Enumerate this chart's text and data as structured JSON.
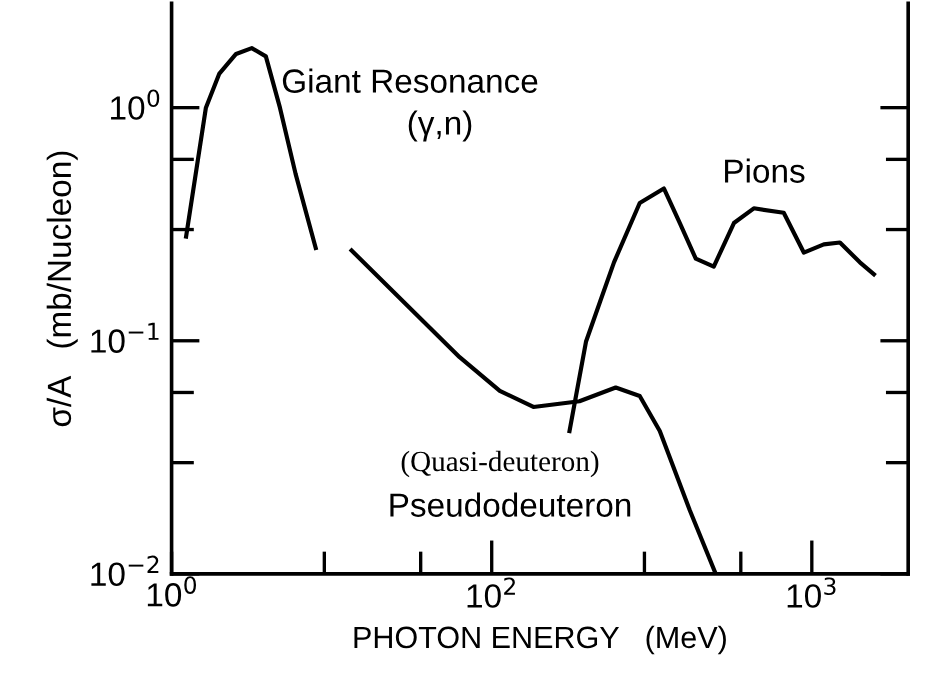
{
  "chart_data": {
    "type": "line",
    "xlabel": "PHOTON ENERGY   (MeV)",
    "ylabel": "σ/A   (mb/Nucleon)",
    "log": "xy",
    "grid": false,
    "legend": false,
    "marker": "none",
    "line_style": "solid",
    "xlim": [
      10,
      2000
    ],
    "ylim": [
      0.01,
      2.8
    ],
    "xticks": [
      {
        "value": 10,
        "label": null
      },
      {
        "value": 30,
        "label": null
      },
      {
        "value": 60,
        "label": null
      },
      {
        "value": 100,
        "label": "10$^{2}$"
      },
      {
        "value": 300,
        "label": null
      },
      {
        "value": 600,
        "label": null
      },
      {
        "value": 1000,
        "label": "10$^{3}$"
      }
    ],
    "yticks": [
      {
        "value": 0.01,
        "label": "10$^{−2}$"
      },
      {
        "value": 0.03,
        "label": null
      },
      {
        "value": 0.06,
        "label": null
      },
      {
        "value": 0.1,
        "label": "10$^{−1}$"
      },
      {
        "value": 0.3,
        "label": null
      },
      {
        "value": 0.6,
        "label": null
      },
      {
        "value": 1,
        "label": "10$^{0}$"
      }
    ],
    "series": [
      {
        "color": "#000000",
        "x": [
          11.1,
          12.8,
          14.1,
          15.9,
          17.8,
          19.7,
          21.8,
          24.4,
          28.2
        ],
        "values": [
          0.28,
          1.0,
          1.4,
          1.7,
          1.8,
          1.66,
          1.0,
          0.52,
          0.25
        ]
      },
      {
        "color": "#000000",
        "x": [
          36.5,
          79.4,
          106,
          135,
          188,
          244,
          290,
          335,
          416,
          501
        ],
        "values": [
          0.244,
          0.085,
          0.061,
          0.052,
          0.055,
          0.063,
          0.058,
          0.041,
          0.0187,
          0.01
        ]
      },
      {
        "color": "#000000",
        "x": [
          175,
          197,
          218,
          241,
          290,
          345,
          387,
          434,
          494,
          571,
          659,
          817,
          944,
          1090,
          1224,
          1413,
          1563
        ],
        "values": [
          0.041,
          0.099,
          0.147,
          0.217,
          0.39,
          0.45,
          0.32,
          0.225,
          0.208,
          0.32,
          0.37,
          0.354,
          0.239,
          0.259,
          0.264,
          0.217,
          0.193
        ]
      }
    ],
    "annotations": [
      "Giant Resonance",
      "(γ,n)",
      "Pions",
      "(Quasi-deuteron)",
      "Pseudodeuteron",
      "10$^{0}$"
    ]
  }
}
